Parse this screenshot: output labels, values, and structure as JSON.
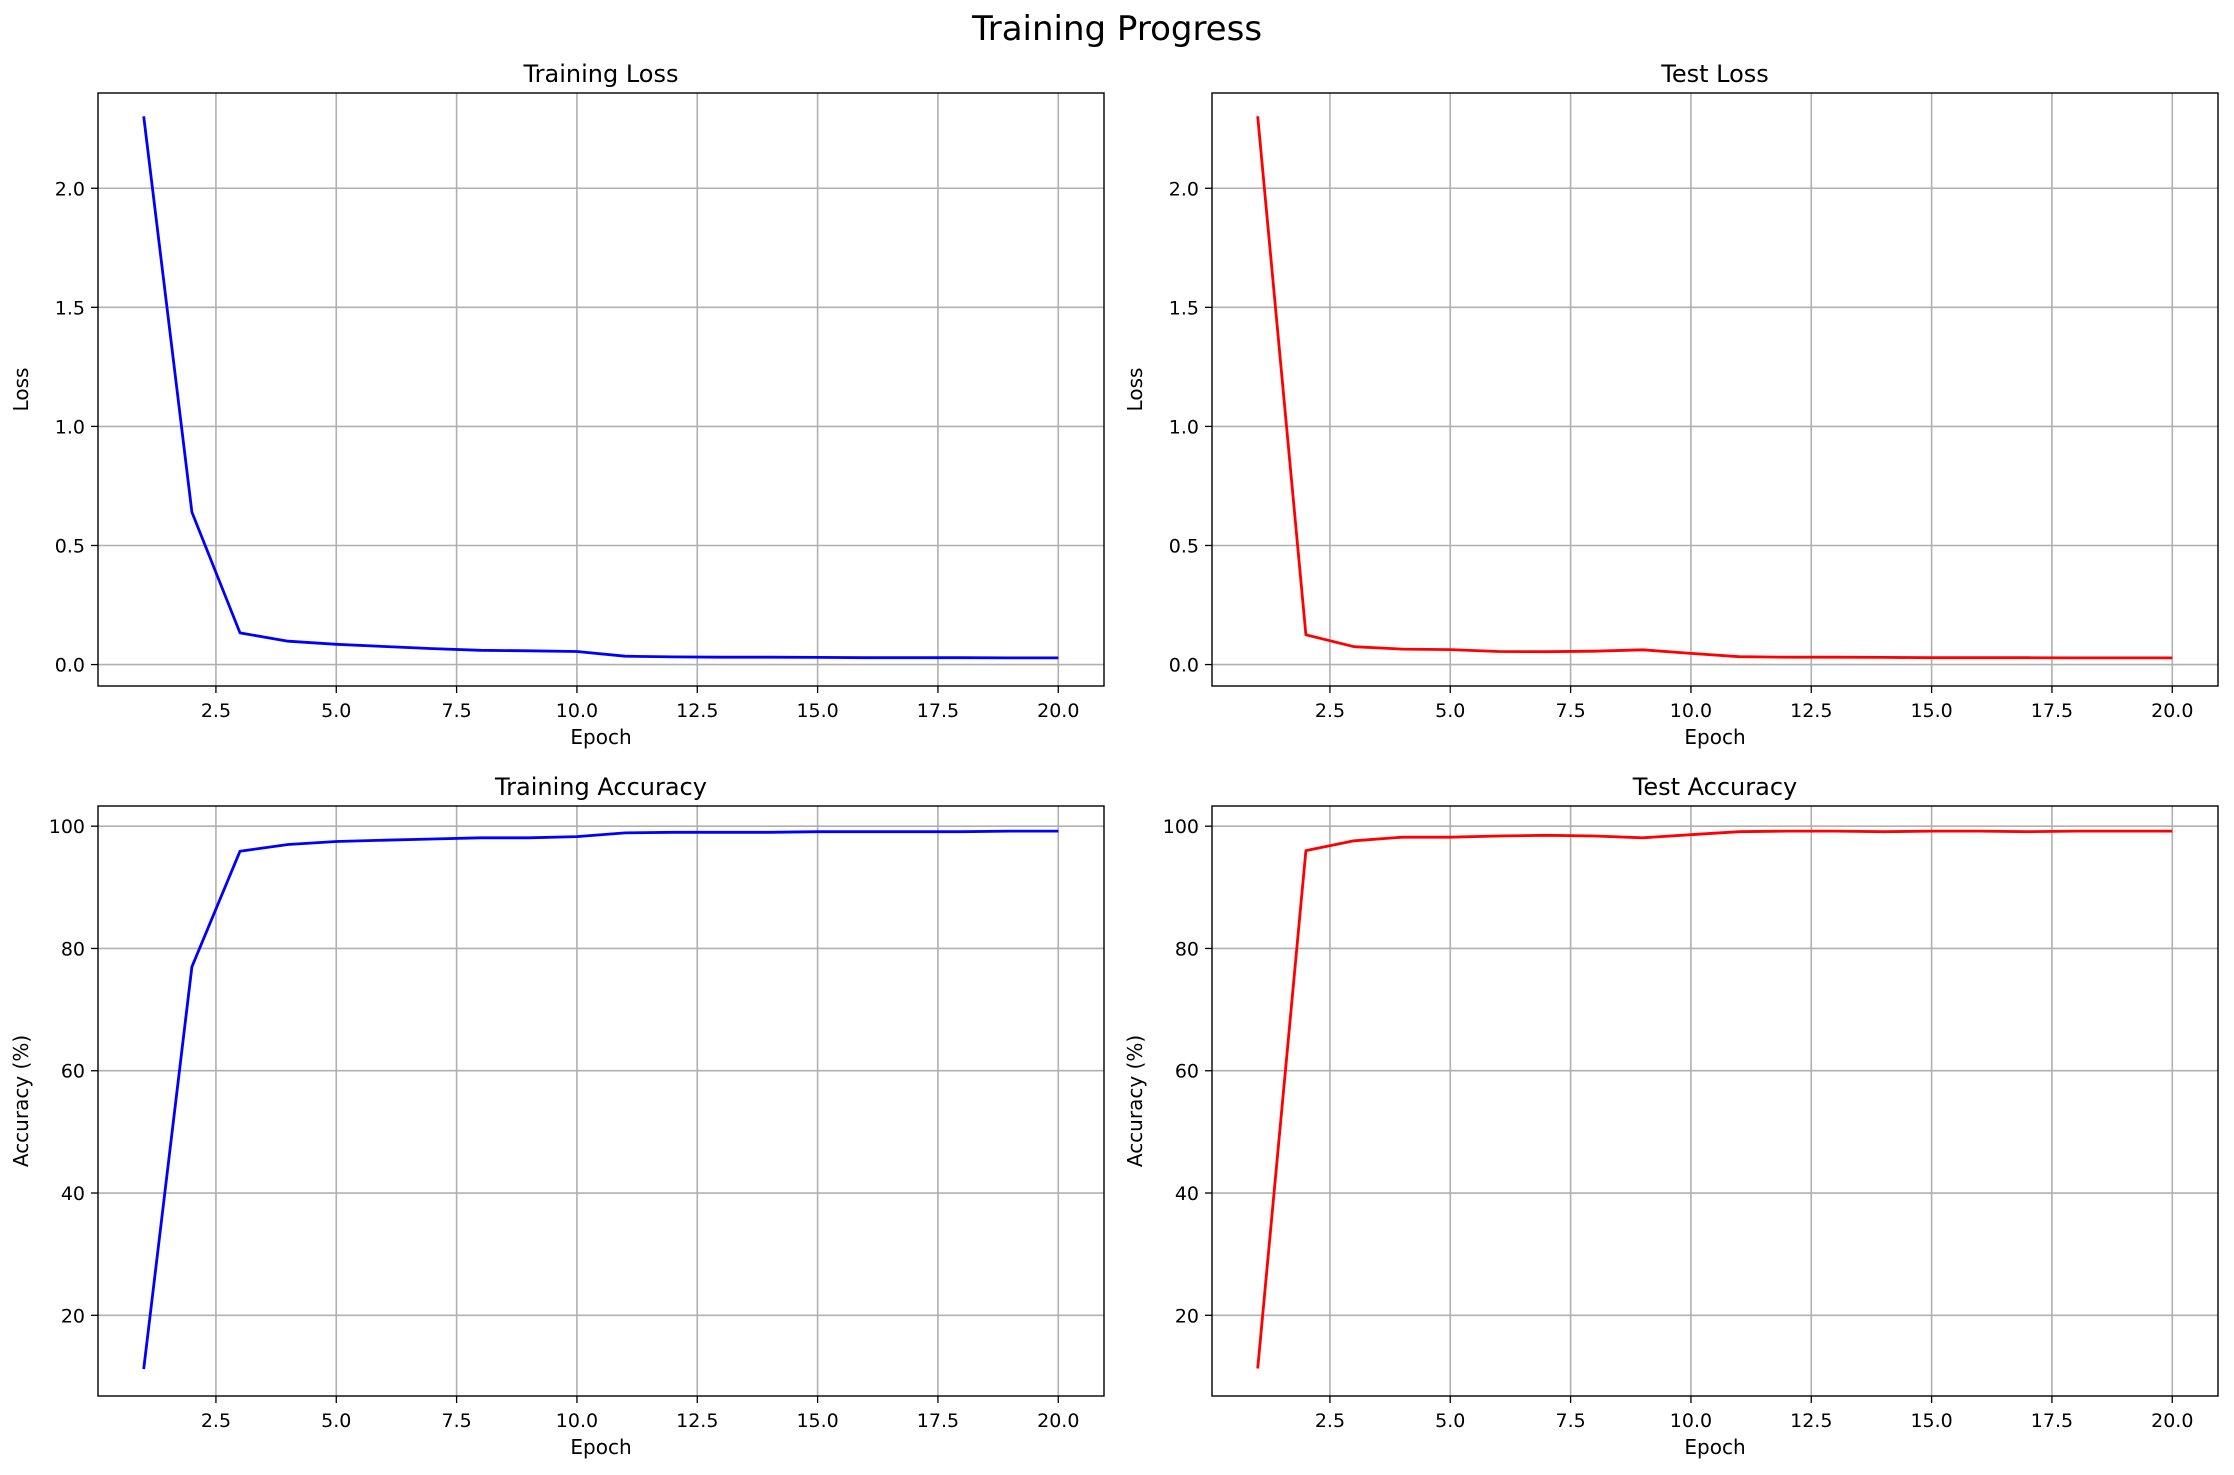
{
  "figure_title": "Training Progress",
  "chart_data": [
    {
      "type": "line",
      "title": "Training Loss",
      "xlabel": "Epoch",
      "ylabel": "Loss",
      "xlim": [
        0.05,
        20.95
      ],
      "ylim": [
        -0.09,
        2.4
      ],
      "xticks": [
        2.5,
        5.0,
        7.5,
        10.0,
        12.5,
        15.0,
        17.5,
        20.0
      ],
      "yticks": [
        0.0,
        0.5,
        1.0,
        1.5,
        2.0
      ],
      "grid": true,
      "series": [
        {
          "color": "#0000ff",
          "x": [
            1,
            2,
            3,
            4,
            5,
            6,
            7,
            8,
            9,
            10,
            11,
            12,
            13,
            14,
            15,
            16,
            17,
            18,
            19,
            20
          ],
          "y": [
            2.302,
            0.64,
            0.133,
            0.098,
            0.085,
            0.076,
            0.067,
            0.06,
            0.058,
            0.055,
            0.035,
            0.032,
            0.031,
            0.031,
            0.03,
            0.029,
            0.029,
            0.029,
            0.028,
            0.028
          ]
        }
      ]
    },
    {
      "type": "line",
      "title": "Test Loss",
      "xlabel": "Epoch",
      "ylabel": "Loss",
      "xlim": [
        0.05,
        20.95
      ],
      "ylim": [
        -0.09,
        2.4
      ],
      "xticks": [
        2.5,
        5.0,
        7.5,
        10.0,
        12.5,
        15.0,
        17.5,
        20.0
      ],
      "yticks": [
        0.0,
        0.5,
        1.0,
        1.5,
        2.0
      ],
      "grid": true,
      "series": [
        {
          "color": "#ff0000",
          "x": [
            1,
            2,
            3,
            4,
            5,
            6,
            7,
            8,
            9,
            10,
            11,
            12,
            13,
            14,
            15,
            16,
            17,
            18,
            19,
            20
          ],
          "y": [
            2.302,
            0.125,
            0.075,
            0.065,
            0.063,
            0.055,
            0.054,
            0.056,
            0.062,
            0.047,
            0.033,
            0.031,
            0.031,
            0.03,
            0.029,
            0.029,
            0.029,
            0.028,
            0.028,
            0.028
          ]
        }
      ]
    },
    {
      "type": "line",
      "title": "Training Accuracy",
      "xlabel": "Epoch",
      "ylabel": "Accuracy (%)",
      "xlim": [
        0.05,
        20.95
      ],
      "ylim": [
        6.8,
        103.3
      ],
      "xticks": [
        2.5,
        5.0,
        7.5,
        10.0,
        12.5,
        15.0,
        17.5,
        20.0
      ],
      "yticks": [
        20,
        40,
        60,
        80,
        100
      ],
      "grid": true,
      "series": [
        {
          "color": "#0000ff",
          "x": [
            1,
            2,
            3,
            4,
            5,
            6,
            7,
            8,
            9,
            10,
            11,
            12,
            13,
            14,
            15,
            16,
            17,
            18,
            19,
            20
          ],
          "y": [
            11.2,
            77.0,
            95.9,
            97.0,
            97.5,
            97.7,
            97.9,
            98.1,
            98.1,
            98.3,
            98.9,
            99.0,
            99.0,
            99.0,
            99.1,
            99.1,
            99.1,
            99.1,
            99.2,
            99.2
          ]
        }
      ]
    },
    {
      "type": "line",
      "title": "Test Accuracy",
      "xlabel": "Epoch",
      "ylabel": "Accuracy (%)",
      "xlim": [
        0.05,
        20.95
      ],
      "ylim": [
        6.8,
        103.3
      ],
      "xticks": [
        2.5,
        5.0,
        7.5,
        10.0,
        12.5,
        15.0,
        17.5,
        20.0
      ],
      "yticks": [
        20,
        40,
        60,
        80,
        100
      ],
      "grid": true,
      "series": [
        {
          "color": "#ff0000",
          "x": [
            1,
            2,
            3,
            4,
            5,
            6,
            7,
            8,
            9,
            10,
            11,
            12,
            13,
            14,
            15,
            16,
            17,
            18,
            19,
            20
          ],
          "y": [
            11.3,
            96.0,
            97.6,
            98.2,
            98.2,
            98.4,
            98.5,
            98.4,
            98.1,
            98.6,
            99.1,
            99.2,
            99.2,
            99.1,
            99.2,
            99.2,
            99.1,
            99.2,
            99.2,
            99.2
          ]
        }
      ]
    }
  ]
}
